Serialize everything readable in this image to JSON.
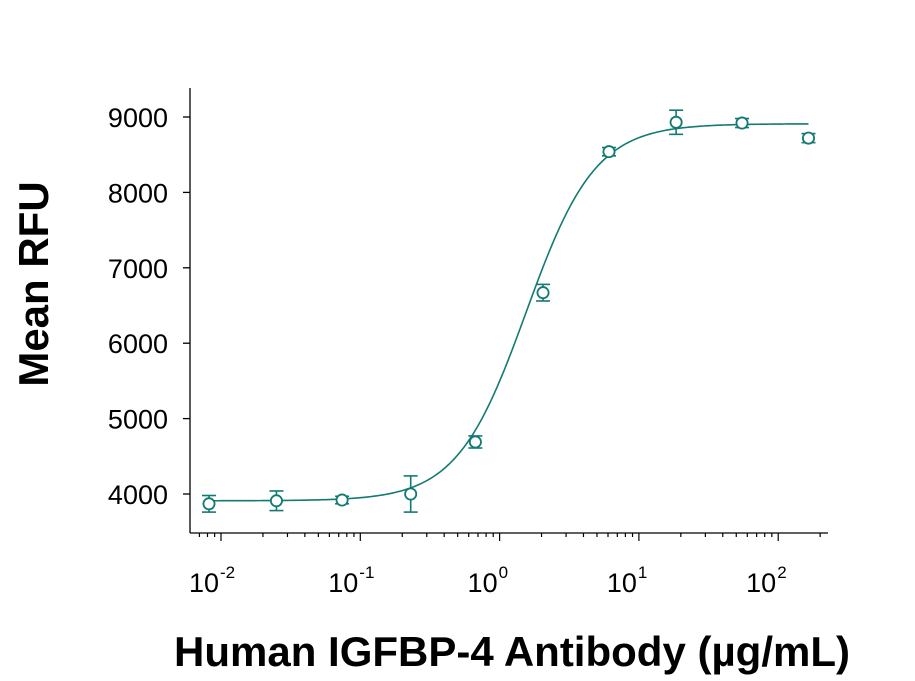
{
  "chart_data": {
    "type": "scatter",
    "title": "",
    "xlabel": "Human IGFBP-4 Antibody (µg/mL)",
    "ylabel": "Mean RFU",
    "x_scale": "log",
    "xlim": [
      0.0066,
      250
    ],
    "ylim": [
      3500,
      9350
    ],
    "x_ticks": [
      {
        "base": "10",
        "exp": "-2",
        "value": 0.01
      },
      {
        "base": "10",
        "exp": "-1",
        "value": 0.1
      },
      {
        "base": "10",
        "exp": "0",
        "value": 1
      },
      {
        "base": "10",
        "exp": "1",
        "value": 10
      },
      {
        "base": "10",
        "exp": "2",
        "value": 100
      }
    ],
    "y_ticks": [
      {
        "label": "4000",
        "value": 4000
      },
      {
        "label": "5000",
        "value": 5000
      },
      {
        "label": "6000",
        "value": 6000
      },
      {
        "label": "7000",
        "value": 7000
      },
      {
        "label": "8000",
        "value": 8000
      },
      {
        "label": "9000",
        "value": 9000
      }
    ],
    "grid": false,
    "legend": "none",
    "color": "#137a72",
    "points": [
      {
        "x": 0.0082,
        "y": 3870,
        "err": 110
      },
      {
        "x": 0.025,
        "y": 3910,
        "err": 130
      },
      {
        "x": 0.074,
        "y": 3920,
        "err": 50
      },
      {
        "x": 0.23,
        "y": 4000,
        "err": 240
      },
      {
        "x": 0.67,
        "y": 4690,
        "err": 80
      },
      {
        "x": 2.05,
        "y": 6670,
        "err": 110
      },
      {
        "x": 6.1,
        "y": 8540,
        "err": 55
      },
      {
        "x": 18.5,
        "y": 8930,
        "err": 160
      },
      {
        "x": 55,
        "y": 8920,
        "err": 60
      },
      {
        "x": 165,
        "y": 8720,
        "err": 60
      }
    ],
    "fit": {
      "model": "4PL",
      "bottom": 3910,
      "top": 8910,
      "ec50": 1.55,
      "hill": 1.75,
      "x_range": [
        0.0082,
        165
      ]
    }
  }
}
